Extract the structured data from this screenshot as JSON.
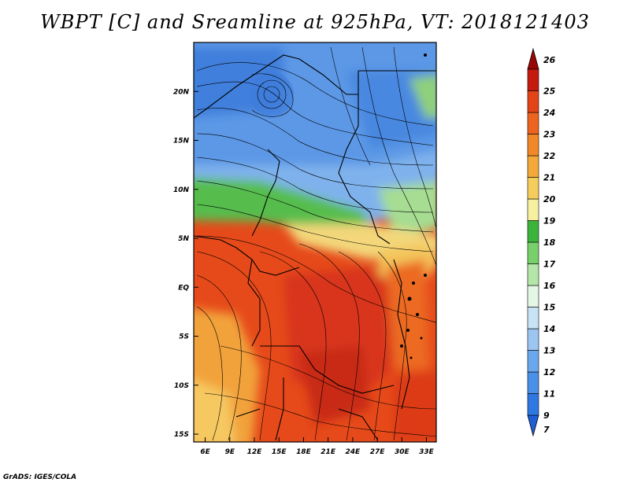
{
  "title": "WBPT [C] and Sreamline at 925hPa, VT: 2018121403",
  "credit": "GrADS: IGES/COLA",
  "map": {
    "lat_labels": [
      "20N",
      "15N",
      "10N",
      "5N",
      "EQ",
      "5S",
      "10S",
      "15S"
    ],
    "lat_values": [
      20,
      15,
      10,
      5,
      0,
      -5,
      -10,
      -15
    ],
    "lon_labels": [
      "6E",
      "9E",
      "12E",
      "15E",
      "18E",
      "21E",
      "24E",
      "27E",
      "30E",
      "33E"
    ],
    "lon_values": [
      6,
      9,
      12,
      15,
      18,
      21,
      24,
      27,
      30,
      33
    ],
    "lat_range": [
      -15.8,
      25
    ],
    "lon_range": [
      4.6,
      34.2
    ]
  },
  "colorbar": {
    "labels": [
      "7",
      "9",
      "11",
      "12",
      "13",
      "14",
      "15",
      "16",
      "17",
      "18",
      "19",
      "20",
      "21",
      "22",
      "23",
      "24",
      "25",
      "26"
    ],
    "colors": [
      "#1e5fd8",
      "#2f78e2",
      "#4a90e8",
      "#6aa8ee",
      "#9cc6f2",
      "#c8e2f6",
      "#e4f6e4",
      "#b4e6a8",
      "#78d06a",
      "#3cb43c",
      "#f6f0a0",
      "#f5cd5c",
      "#f3a83a",
      "#f08828",
      "#ec6420",
      "#e24418",
      "#c41a10",
      "#9a0606"
    ]
  }
}
